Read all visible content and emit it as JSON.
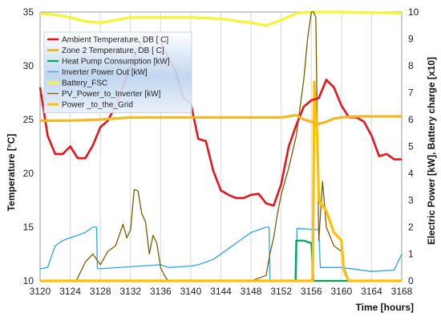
{
  "chart_data": {
    "type": "line",
    "xlabel": "Time [hours]",
    "ylabel_left": "Temperature [°C]",
    "ylabel_right": "Electric Power [kW], Battery charge [x10]",
    "xlim": [
      3120,
      3168
    ],
    "ylim_left": [
      10,
      35
    ],
    "ylim_right": [
      0,
      10
    ],
    "x_ticks": [
      "3120",
      "3124",
      "3128",
      "3132",
      "3136",
      "3140",
      "3144",
      "3148",
      "3152",
      "3156",
      "3160",
      "3164",
      "3168"
    ],
    "y_left_ticks": [
      "10",
      "15",
      "20",
      "25",
      "30",
      "35"
    ],
    "y_right_ticks": [
      "0",
      "1",
      "2",
      "3",
      "4",
      "5",
      "6",
      "7",
      "8",
      "9",
      "10"
    ],
    "grid": "vertical",
    "legend_placement": "top-left",
    "series": [
      {
        "name": "Ambient Temperature, DB [ C]",
        "axis": "left",
        "color": "#e8141c",
        "x": [
          3120,
          3121,
          3122,
          3123,
          3124,
          3125,
          3126,
          3127,
          3128,
          3129,
          3130,
          3131,
          3132,
          3133,
          3134,
          3135,
          3135.5,
          3136,
          3137,
          3138,
          3139,
          3140,
          3141,
          3142,
          3143,
          3144,
          3145,
          3146,
          3147,
          3148,
          3149,
          3150,
          3151,
          3152,
          3153,
          3154,
          3155,
          3156,
          3157,
          3158,
          3159,
          3160,
          3161,
          3162,
          3163,
          3164,
          3165,
          3166,
          3167,
          3168
        ],
        "y": [
          28,
          23.5,
          21.8,
          21.8,
          22.5,
          21.4,
          21.4,
          22.6,
          24.3,
          24.9,
          26.3,
          28.0,
          30.0,
          31.6,
          32.4,
          32.8,
          33.0,
          32.4,
          30.8,
          29.5,
          27.0,
          26.5,
          23.2,
          23.0,
          20.2,
          18.4,
          18.0,
          17.7,
          17.7,
          18.0,
          18.1,
          17.2,
          17.0,
          19.0,
          22.5,
          24.5,
          26.2,
          26.8,
          27.0,
          28.7,
          28.0,
          26.3,
          25.2,
          25.2,
          24.8,
          23.5,
          21.6,
          21.8,
          21.3,
          21.3
        ]
      },
      {
        "name": "Zone 2 Temperature, DB [ C]",
        "axis": "left",
        "color": "#f0b822",
        "x": [
          3120,
          3124,
          3128,
          3132,
          3136,
          3140,
          3144,
          3148,
          3152,
          3154,
          3155,
          3156,
          3156.8,
          3157,
          3158,
          3159,
          3160,
          3162,
          3164,
          3168
        ],
        "y": [
          24.9,
          24.9,
          25.0,
          25.2,
          25.2,
          25.2,
          25.2,
          25.2,
          25.2,
          25.4,
          25.0,
          24.8,
          24.6,
          24.6,
          24.8,
          25.1,
          25.2,
          25.3,
          25.3,
          25.3
        ]
      },
      {
        "name": "Heat Pump Consumption [kW]",
        "axis": "right",
        "color": "#00a55a",
        "x": [
          3120,
          3153.9,
          3154,
          3155,
          3156,
          3156.3,
          3168
        ],
        "y": [
          0,
          0,
          1.5,
          1.5,
          1.4,
          0,
          0
        ]
      },
      {
        "name": "Inverter Power Out [kW]",
        "axis": "right",
        "color": "#28a8e0",
        "x": [
          3120,
          3121,
          3122,
          3123,
          3124,
          3125,
          3126,
          3127,
          3127.5,
          3127.6,
          3128,
          3136,
          3137,
          3140,
          3141,
          3142,
          3143,
          3144,
          3145,
          3146,
          3147,
          3148,
          3149,
          3150,
          3150.4,
          3150.5,
          3154,
          3154.1,
          3157,
          3157.2,
          3160,
          3164,
          3167,
          3168
        ],
        "y": [
          0.45,
          0.5,
          1.3,
          1.5,
          1.6,
          1.7,
          1.8,
          2.0,
          2.0,
          0.45,
          0.45,
          0.6,
          0.5,
          0.55,
          0.6,
          0.7,
          0.8,
          1.0,
          1.2,
          1.4,
          1.6,
          1.8,
          1.9,
          2.0,
          2.0,
          0,
          0,
          1.95,
          1.9,
          0.5,
          0.5,
          0.35,
          0.4,
          1.0
        ]
      },
      {
        "name": "Battery_FSC",
        "axis": "right",
        "color": "#f5f532",
        "x": [
          3120,
          3122,
          3124,
          3126,
          3128,
          3132,
          3136,
          3140,
          3144,
          3148,
          3150,
          3152,
          3154,
          3156,
          3158,
          3160,
          3164,
          3168
        ],
        "y": [
          9.95,
          9.9,
          9.8,
          9.65,
          9.6,
          9.8,
          9.8,
          9.8,
          9.75,
          9.6,
          9.5,
          9.7,
          9.95,
          10.0,
          10.0,
          10.0,
          9.98,
          9.95
        ]
      },
      {
        "name": "PV_Power_to_Inverter [kW]",
        "axis": "right",
        "color": "#7f5a00",
        "x": [
          3120,
          3124.8,
          3126,
          3127,
          3127.5,
          3128,
          3129,
          3130,
          3130.5,
          3131,
          3131.5,
          3132,
          3132.5,
          3133,
          3133.5,
          3134,
          3134.5,
          3135,
          3135.5,
          3136,
          3136.5,
          3137,
          3148,
          3150,
          3150.5,
          3151,
          3151.5,
          3152,
          3153,
          3154,
          3155,
          3155.5,
          3156,
          3156.3,
          3156.6,
          3157,
          3157.5,
          3158,
          3159,
          3160,
          3160.3,
          3160.6,
          3161,
          3168
        ],
        "y": [
          0,
          0,
          0.7,
          1.0,
          0.8,
          0.6,
          1.1,
          1.3,
          1.7,
          2.1,
          1.6,
          1.9,
          3.4,
          3.35,
          2.5,
          2.2,
          1.0,
          1.7,
          1.4,
          0.5,
          0.2,
          0,
          0,
          0.2,
          1.0,
          1.6,
          2.5,
          3.2,
          4.2,
          5.4,
          7.5,
          9.0,
          10.0,
          10.0,
          9.8,
          1.5,
          3.7,
          2.0,
          1.3,
          1.1,
          0.5,
          0.3,
          0,
          0
        ]
      },
      {
        "name": "Power _to_the_Grid",
        "axis": "right",
        "color": "#ffc000",
        "x": [
          3120,
          3156.2,
          3156.4,
          3156.8,
          3157,
          3158,
          3159,
          3160,
          3160.3,
          3160.6,
          3161,
          3168
        ],
        "y": [
          0,
          0,
          7.4,
          5.2,
          3.0,
          2.6,
          1.8,
          1.5,
          0.4,
          0.2,
          0,
          0
        ]
      }
    ]
  }
}
